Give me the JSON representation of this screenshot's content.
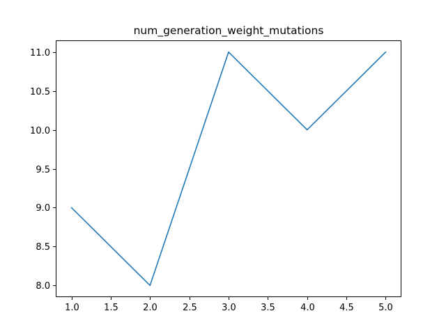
{
  "chart_data": {
    "type": "line",
    "title": "num_generation_weight_mutations",
    "xlabel": "",
    "ylabel": "",
    "x": [
      1.0,
      2.0,
      3.0,
      4.0,
      5.0
    ],
    "series": [
      {
        "values": [
          9,
          8,
          11,
          10,
          11
        ],
        "color": "#1f77b4"
      }
    ],
    "xlim": [
      0.8,
      5.2
    ],
    "ylim": [
      7.85,
      11.15
    ],
    "xticks": [
      1.0,
      1.5,
      2.0,
      2.5,
      3.0,
      3.5,
      4.0,
      4.5,
      5.0
    ],
    "xtick_labels": [
      "1.0",
      "1.5",
      "2.0",
      "2.5",
      "3.0",
      "3.5",
      "4.0",
      "4.5",
      "5.0"
    ],
    "yticks": [
      8.0,
      8.5,
      9.0,
      9.5,
      10.0,
      10.5,
      11.0
    ],
    "ytick_labels": [
      "8.0",
      "8.5",
      "9.0",
      "9.5",
      "10.0",
      "10.5",
      "11.0"
    ],
    "grid": false,
    "legend": false
  }
}
